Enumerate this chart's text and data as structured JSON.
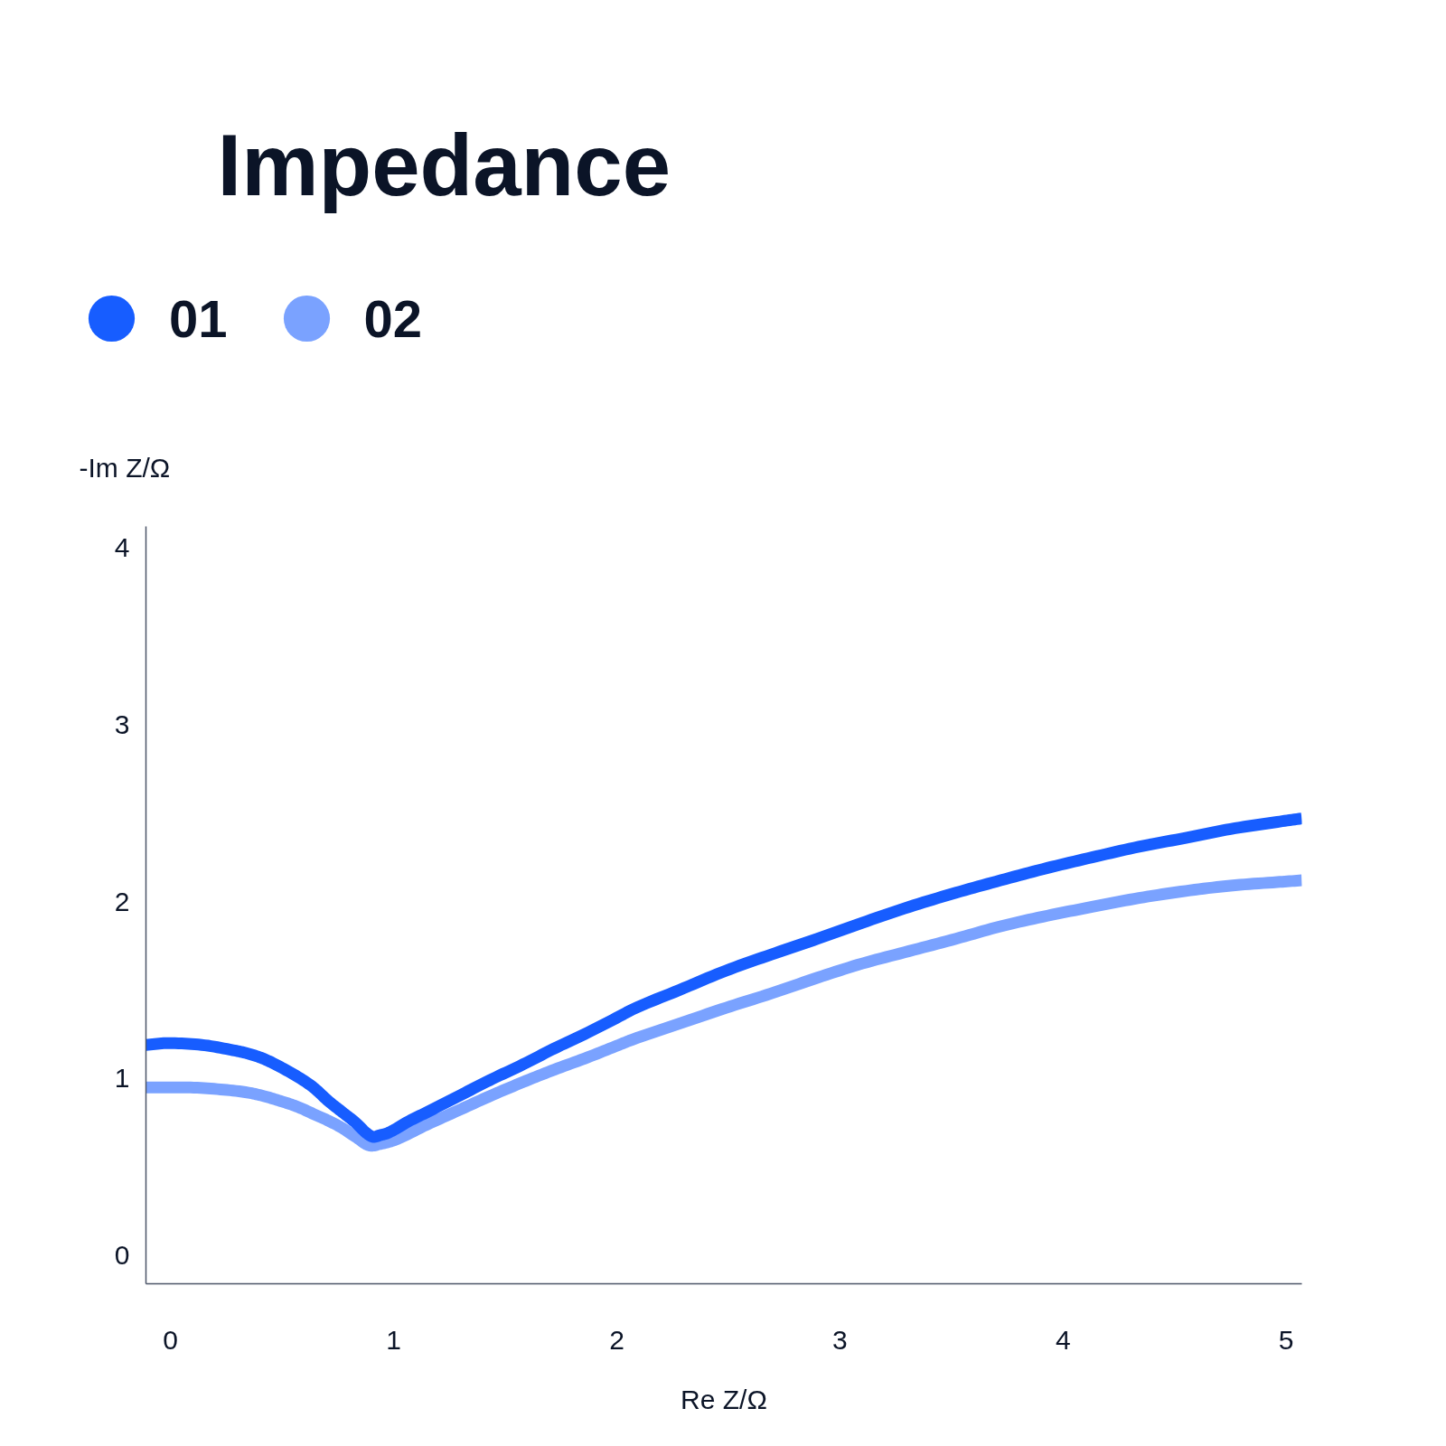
{
  "chart_data": {
    "type": "line",
    "title": "Impedance",
    "xlabel": "Re Z/Ω",
    "ylabel": "-Im Z/Ω",
    "xlim": [
      -0.11,
      5.07
    ],
    "ylim": [
      -0.16,
      4.12
    ],
    "xticks": [
      0,
      1,
      2,
      3,
      4,
      5
    ],
    "yticks": [
      0,
      1,
      2,
      3,
      4
    ],
    "legend": "top left",
    "line_style": "solid",
    "series": [
      {
        "name": "01",
        "color": "#175dff",
        "x": [
          -0.11,
          -0.01,
          0.14,
          0.28,
          0.35,
          0.42,
          0.5,
          0.57,
          0.64,
          0.71,
          0.77,
          0.83,
          0.88,
          0.91,
          0.94,
          0.97,
          1.07,
          1.15,
          1.29,
          1.43,
          1.58,
          1.72,
          1.87,
          2.01,
          2.07,
          2.28,
          2.49,
          2.69,
          2.9,
          3.1,
          3.31,
          3.52,
          3.72,
          3.93,
          4.13,
          4.34,
          4.55,
          4.75,
          4.96,
          5.07
        ],
        "values": [
          1.19,
          1.2,
          1.19,
          1.16,
          1.14,
          1.11,
          1.06,
          1.01,
          0.95,
          0.87,
          0.81,
          0.75,
          0.69,
          0.67,
          0.68,
          0.69,
          0.76,
          0.81,
          0.9,
          0.99,
          1.08,
          1.17,
          1.26,
          1.35,
          1.39,
          1.5,
          1.61,
          1.7,
          1.79,
          1.88,
          1.97,
          2.05,
          2.12,
          2.19,
          2.25,
          2.31,
          2.36,
          2.41,
          2.45,
          2.47
        ]
      },
      {
        "name": "02",
        "color": "#7aa2ff",
        "x": [
          -0.11,
          0.06,
          0.21,
          0.35,
          0.42,
          0.5,
          0.57,
          0.64,
          0.71,
          0.77,
          0.83,
          0.9,
          0.94,
          1.0,
          1.15,
          1.29,
          1.43,
          1.58,
          1.72,
          1.87,
          2.01,
          2.07,
          2.28,
          2.49,
          2.69,
          2.9,
          3.1,
          3.31,
          3.52,
          3.72,
          3.93,
          4.13,
          4.34,
          4.55,
          4.75,
          4.96,
          5.07
        ],
        "values": [
          0.95,
          0.95,
          0.94,
          0.92,
          0.9,
          0.87,
          0.84,
          0.8,
          0.76,
          0.72,
          0.67,
          0.62,
          0.63,
          0.65,
          0.74,
          0.82,
          0.9,
          0.98,
          1.05,
          1.12,
          1.19,
          1.22,
          1.31,
          1.4,
          1.48,
          1.57,
          1.65,
          1.72,
          1.79,
          1.86,
          1.92,
          1.97,
          2.02,
          2.06,
          2.09,
          2.11,
          2.12
        ]
      }
    ]
  }
}
